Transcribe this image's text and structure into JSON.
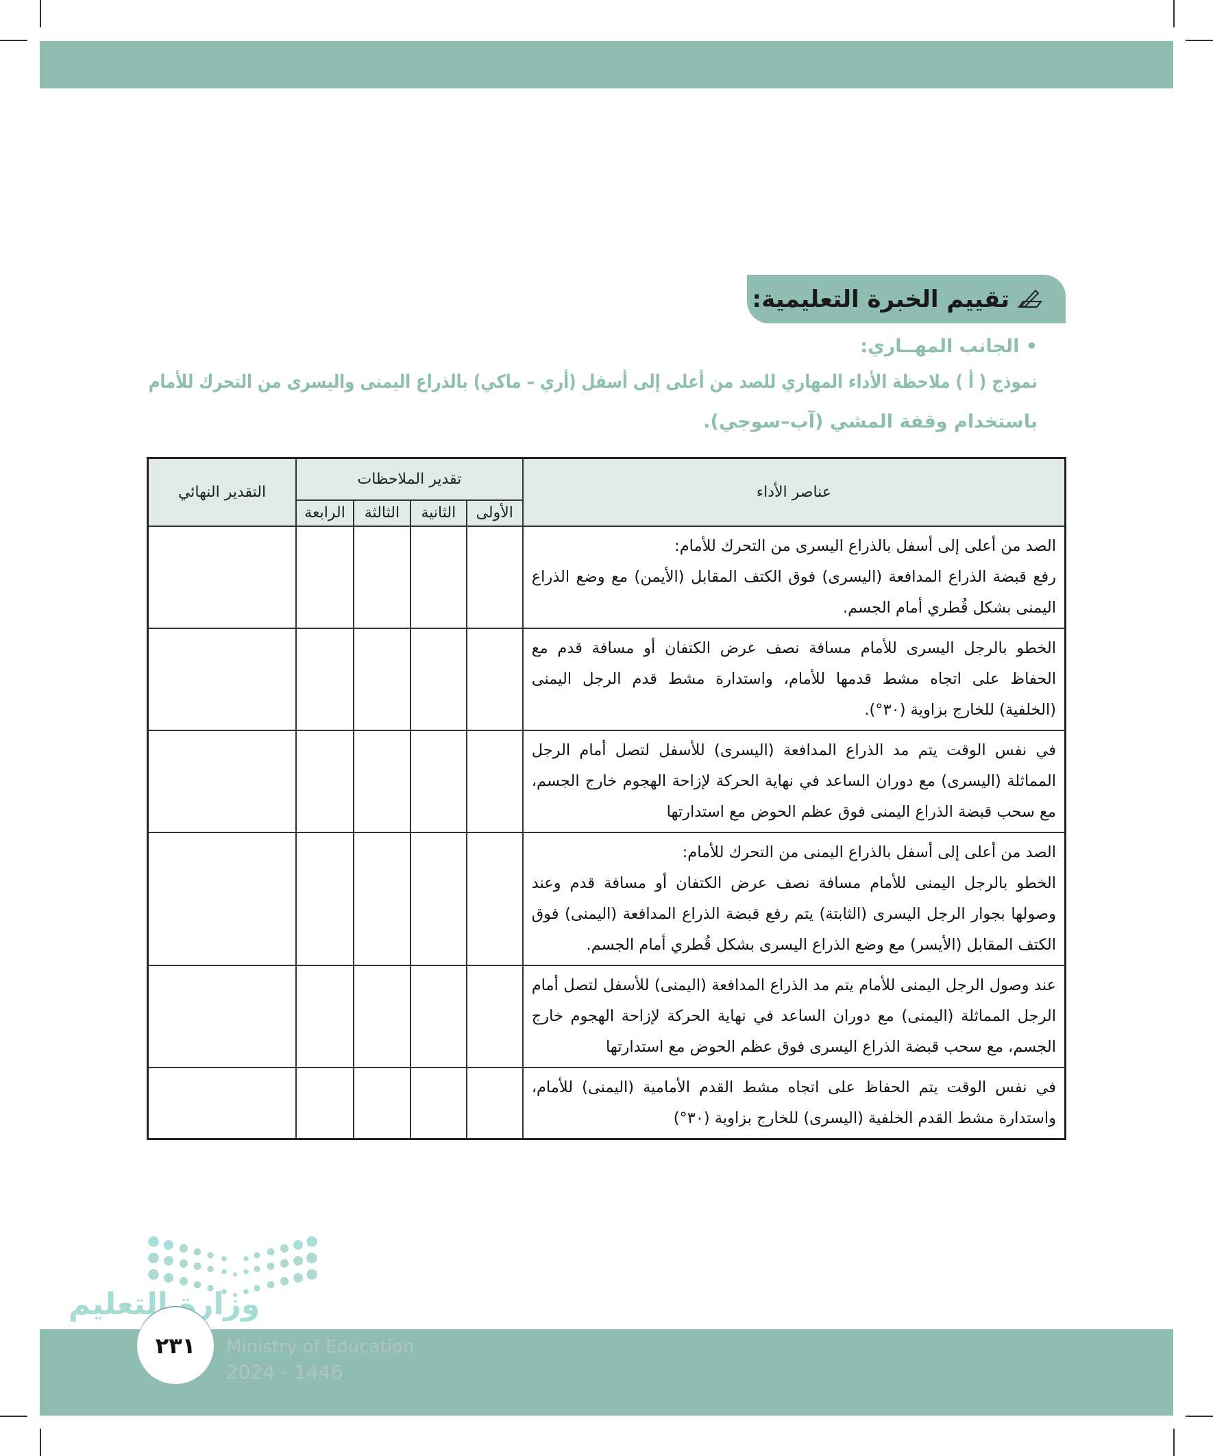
{
  "colors": {
    "accent": "#8fbdb1",
    "header_fill": "#e0ebe8",
    "subtitle_text": "#8cbfae"
  },
  "section_title": {
    "icon": "pen-writing-icon",
    "text": "تقييم الخبرة التعليمية:"
  },
  "aspect_label": "• الجانب المهــاري:",
  "model_title": {
    "line1": "نموذج ( أ ) ملاحظة الأداء المهاري للصد من أعلى إلى أسفل (أري – ماكي) بالذراع اليمنى واليسرى من التحرك للأمام",
    "line2": "باستخدام وقفة المشي (آب–سوجي)."
  },
  "table": {
    "headers": {
      "elements": "عناصر الأداء",
      "observations": "تقدير الملاحظات",
      "final": "التقدير النهائي",
      "sub": [
        "الأولى",
        "الثانية",
        "الثالثة",
        "الرابعة"
      ]
    },
    "rows": [
      {
        "heading": "الصد من أعلى إلى أسفل بالذراع اليسرى من التحرك للأمام:",
        "text": "رفع قبضة الذراع المدافعة (اليسرى) فوق الكتف المقابل (الأيمن) مع وضع الذراع اليمنى بشكل قُطري أمام الجسم."
      },
      {
        "heading": "",
        "text": "الخطو بالرجل اليسرى للأمام مسافة نصف عرض الكتفان أو مسافة قدم مع الحفاظ على اتجاه مشط قدمها للأمام، واستدارة مشط قدم الرجل اليمنى (الخلفية) للخارج بزاوية (٣٠°)."
      },
      {
        "heading": "",
        "text": "في نفس الوقت يتم مد الذراع المدافعة (اليسرى) للأسفل لتصل أمام الرجل المماثلة (اليسرى) مع دوران الساعد في نهاية الحركة لإزاحة الهجوم خارج الجسم، مع سحب قبضة الذراع اليمنى فوق عظم الحوض مع استدارتها"
      },
      {
        "heading": "الصد من أعلى إلى أسفل بالذراع اليمنى من التحرك للأمام:",
        "text": "الخطو بالرجل اليمنى للأمام مسافة نصف عرض الكتفان أو مسافة قدم وعند وصولها بجوار الرجل اليسرى (الثابتة) يتم رفع قبضة الذراع المدافعة (اليمنى) فوق الكتف المقابل (الأيسر) مع وضع الذراع اليسرى بشكل قُطري أمام الجسم."
      },
      {
        "heading": "",
        "text": "عند وصول الرجل اليمنى للأمام يتم مد الذراع المدافعة (اليمنى) للأسفل لتصل أمام الرجل المماثلة (اليمنى) مع دوران الساعد في نهاية الحركة لإزاحة الهجوم خارج الجسم، مع سحب قبضة الذراع اليسرى فوق عظم الحوض مع استدارتها"
      },
      {
        "heading": "",
        "text": "في نفس الوقت يتم الحفاظ على اتجاه مشط القدم الأمامية (اليمنى) للأمام، واستدارة مشط القدم الخلفية (اليسرى) للخارج بزاوية (٣٠°)"
      }
    ]
  },
  "footer": {
    "logo_ar": "وزارة التعليم",
    "logo_en": "Ministry of Education",
    "logo_year": "2024 - 1446",
    "page_number": "٢٣١"
  }
}
